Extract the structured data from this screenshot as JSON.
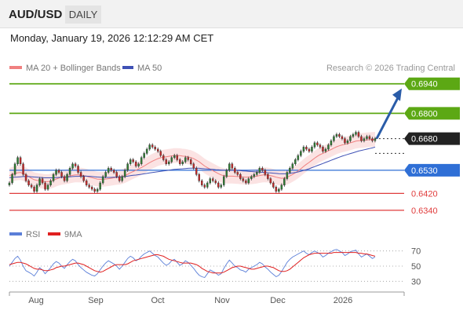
{
  "header": {
    "symbol": "AUD/USD",
    "timeframe": "DAILY"
  },
  "datetime": "Monday, January 19, 2026 12:12:29 AM CET",
  "legend": {
    "ma20": "MA 20 + Bollinger Bands",
    "ma50": "MA 50",
    "credit": "Research © 2026 Trading Central"
  },
  "rsi_legend": {
    "rsi": "RSI",
    "ma": "9MA"
  },
  "colors": {
    "candle_up": "#2e7d32",
    "candle_down": "#c62828",
    "bollinger_fill": "#fadada",
    "ma20": "#f08080",
    "ma50": "#3f51b5",
    "target": "#5ca814",
    "pivot": "#2f6fd6",
    "support": "#e03c3c",
    "arrow": "#2a5ca8",
    "rsi": "#5b7fd8",
    "rsi_ma": "#e02020"
  },
  "chart_data": {
    "type": "candlestick",
    "x_labels": [
      "Aug",
      "Sep",
      "Oct",
      "Nov",
      "Dec",
      "2026"
    ],
    "y_range": [
      0.628,
      0.698
    ],
    "levels": [
      {
        "value": 0.694,
        "label": "0.6940",
        "kind": "resistance"
      },
      {
        "value": 0.68,
        "label": "0.6800",
        "kind": "resistance"
      },
      {
        "value": 0.668,
        "label": "0.6680",
        "kind": "current"
      },
      {
        "value": 0.653,
        "label": "0.6530",
        "kind": "pivot"
      },
      {
        "value": 0.642,
        "label": "0.6420",
        "kind": "support"
      },
      {
        "value": 0.634,
        "label": "0.6340",
        "kind": "support"
      }
    ],
    "closes": [
      0.647,
      0.651,
      0.656,
      0.659,
      0.656,
      0.651,
      0.648,
      0.646,
      0.645,
      0.643,
      0.646,
      0.649,
      0.647,
      0.644,
      0.646,
      0.648,
      0.651,
      0.653,
      0.652,
      0.65,
      0.648,
      0.651,
      0.654,
      0.656,
      0.655,
      0.652,
      0.65,
      0.648,
      0.646,
      0.645,
      0.644,
      0.643,
      0.644,
      0.647,
      0.65,
      0.652,
      0.654,
      0.653,
      0.652,
      0.65,
      0.648,
      0.65,
      0.653,
      0.656,
      0.658,
      0.657,
      0.655,
      0.656,
      0.659,
      0.661,
      0.663,
      0.665,
      0.664,
      0.663,
      0.662,
      0.66,
      0.658,
      0.656,
      0.657,
      0.659,
      0.66,
      0.658,
      0.656,
      0.657,
      0.659,
      0.658,
      0.656,
      0.654,
      0.651,
      0.648,
      0.646,
      0.645,
      0.647,
      0.649,
      0.648,
      0.647,
      0.645,
      0.646,
      0.65,
      0.653,
      0.656,
      0.654,
      0.652,
      0.651,
      0.649,
      0.648,
      0.647,
      0.649,
      0.65,
      0.651,
      0.652,
      0.654,
      0.653,
      0.651,
      0.649,
      0.647,
      0.645,
      0.643,
      0.644,
      0.646,
      0.649,
      0.652,
      0.654,
      0.656,
      0.658,
      0.66,
      0.662,
      0.664,
      0.663,
      0.662,
      0.664,
      0.666,
      0.665,
      0.664,
      0.662,
      0.663,
      0.665,
      0.667,
      0.669,
      0.67,
      0.669,
      0.668,
      0.666,
      0.667,
      0.669,
      0.67,
      0.671,
      0.669,
      0.667,
      0.668,
      0.669,
      0.668,
      0.667,
      0.668
    ],
    "ma20": [
      0.6505,
      0.651,
      0.6515,
      0.6518,
      0.6519,
      0.6515,
      0.6508,
      0.65,
      0.6492,
      0.6485,
      0.6482,
      0.648,
      0.6478,
      0.6476,
      0.6476,
      0.6478,
      0.6482,
      0.6488,
      0.6493,
      0.6496,
      0.6498,
      0.65,
      0.6503,
      0.6506,
      0.6508,
      0.6508,
      0.6507,
      0.6505,
      0.6502,
      0.6498,
      0.6495,
      0.6491,
      0.6488,
      0.6487,
      0.6487,
      0.6488,
      0.649,
      0.6492,
      0.6494,
      0.6496,
      0.6497,
      0.65,
      0.6505,
      0.6511,
      0.6518,
      0.6524,
      0.653,
      0.6536,
      0.6543,
      0.655,
      0.6558,
      0.6566,
      0.6573,
      0.6579,
      0.6585,
      0.6589,
      0.6592,
      0.6594,
      0.6596,
      0.6598,
      0.66,
      0.66,
      0.6599,
      0.6597,
      0.6596,
      0.6593,
      0.659,
      0.6585,
      0.6578,
      0.657,
      0.656,
      0.655,
      0.6542,
      0.6535,
      0.6528,
      0.6521,
      0.6514,
      0.6508,
      0.6504,
      0.6502,
      0.6502,
      0.6502,
      0.6501,
      0.65,
      0.6499,
      0.6498,
      0.6497,
      0.6498,
      0.6499,
      0.65,
      0.6502,
      0.6505,
      0.6507,
      0.6508,
      0.6507,
      0.6505,
      0.6501,
      0.6497,
      0.6494,
      0.6492,
      0.6493,
      0.6497,
      0.6503,
      0.651,
      0.6518,
      0.6527,
      0.6537,
      0.6548,
      0.6558,
      0.6567,
      0.6577,
      0.6587,
      0.6596,
      0.6604,
      0.661,
      0.6616,
      0.6622,
      0.6628,
      0.6635,
      0.6641,
      0.6646,
      0.665,
      0.6653,
      0.6656,
      0.666,
      0.6664,
      0.6668,
      0.667,
      0.6671,
      0.6672,
      0.6674,
      0.6675,
      0.6676,
      0.6677
    ],
    "ma50": [
      0.6495,
      0.6496,
      0.6497,
      0.6498,
      0.6499,
      0.65,
      0.65,
      0.65,
      0.6499,
      0.6498,
      0.6497,
      0.6496,
      0.6495,
      0.6494,
      0.6494,
      0.6494,
      0.6494,
      0.6495,
      0.6496,
      0.6497,
      0.6497,
      0.6498,
      0.6499,
      0.65,
      0.6501,
      0.6501,
      0.6502,
      0.6502,
      0.6502,
      0.6501,
      0.65,
      0.6499,
      0.6498,
      0.6497,
      0.6496,
      0.6496,
      0.6496,
      0.6496,
      0.6497,
      0.6497,
      0.6498,
      0.6499,
      0.65,
      0.6502,
      0.6504,
      0.6506,
      0.6507,
      0.6509,
      0.6511,
      0.6513,
      0.6515,
      0.6517,
      0.6519,
      0.6521,
      0.6523,
      0.6525,
      0.6527,
      0.6528,
      0.653,
      0.6532,
      0.6534,
      0.6535,
      0.6536,
      0.6537,
      0.6538,
      0.6539,
      0.654,
      0.654,
      0.654,
      0.6539,
      0.6538,
      0.6537,
      0.6536,
      0.6535,
      0.6534,
      0.6533,
      0.6532,
      0.6531,
      0.653,
      0.653,
      0.653,
      0.653,
      0.653,
      0.6529,
      0.6528,
      0.6527,
      0.6526,
      0.6525,
      0.6524,
      0.6523,
      0.6522,
      0.6521,
      0.652,
      0.6519,
      0.6518,
      0.6517,
      0.6516,
      0.6515,
      0.6514,
      0.6513,
      0.6513,
      0.6514,
      0.6515,
      0.6517,
      0.6519,
      0.6522,
      0.6525,
      0.6529,
      0.6533,
      0.6537,
      0.6542,
      0.6547,
      0.6552,
      0.6557,
      0.6562,
      0.6567,
      0.6572,
      0.6577,
      0.6582,
      0.6587,
      0.6592,
      0.6597,
      0.6601,
      0.6605,
      0.6609,
      0.6613,
      0.6617,
      0.6621,
      0.6624,
      0.6627,
      0.663,
      0.6633,
      0.6636,
      0.664
    ],
    "rsi": [
      50,
      55,
      60,
      63,
      58,
      50,
      44,
      42,
      40,
      37,
      42,
      48,
      45,
      40,
      44,
      48,
      53,
      56,
      54,
      50,
      47,
      52,
      56,
      59,
      57,
      52,
      48,
      45,
      42,
      40,
      38,
      37,
      40,
      45,
      50,
      54,
      57,
      55,
      53,
      50,
      46,
      50,
      55,
      60,
      63,
      61,
      57,
      59,
      63,
      66,
      68,
      70,
      67,
      64,
      62,
      58,
      54,
      51,
      53,
      57,
      59,
      55,
      51,
      53,
      57,
      55,
      51,
      47,
      42,
      38,
      36,
      35,
      40,
      45,
      43,
      41,
      38,
      40,
      47,
      53,
      58,
      54,
      50,
      48,
      45,
      44,
      42,
      46,
      48,
      50,
      52,
      55,
      53,
      49,
      46,
      42,
      39,
      36,
      38,
      43,
      49,
      55,
      59,
      62,
      64,
      66,
      68,
      70,
      67,
      65,
      68,
      70,
      68,
      66,
      62,
      64,
      67,
      69,
      71,
      72,
      70,
      68,
      64,
      66,
      69,
      70,
      71,
      66,
      62,
      64,
      66,
      63,
      60,
      62
    ],
    "rsi_ma": [
      52,
      53,
      54,
      55,
      55,
      54,
      53,
      51,
      49,
      47,
      46,
      46,
      45,
      44,
      44,
      45,
      46,
      48,
      49,
      50,
      50,
      51,
      52,
      53,
      54,
      54,
      53,
      52,
      50,
      48,
      46,
      44,
      43,
      42,
      43,
      45,
      47,
      49,
      51,
      52,
      52,
      52,
      52,
      53,
      55,
      57,
      58,
      59,
      60,
      61,
      62,
      63,
      64,
      65,
      65,
      64,
      63,
      61,
      59,
      58,
      57,
      56,
      55,
      54,
      54,
      54,
      54,
      53,
      52,
      50,
      47,
      45,
      43,
      42,
      41,
      41,
      41,
      41,
      42,
      44,
      46,
      48,
      49,
      50,
      50,
      49,
      48,
      47,
      46,
      46,
      47,
      48,
      49,
      50,
      50,
      49,
      48,
      46,
      44,
      43,
      43,
      44,
      46,
      49,
      52,
      55,
      58,
      61,
      63,
      65,
      66,
      67,
      67,
      67,
      67,
      67,
      67,
      67,
      68,
      68,
      68,
      68,
      68,
      68,
      68,
      68,
      68,
      67,
      67,
      66,
      66,
      65,
      64,
      63
    ],
    "rsi_levels": [
      {
        "value": 70,
        "label": "70"
      },
      {
        "value": 50,
        "label": "50"
      },
      {
        "value": 30,
        "label": "30"
      }
    ],
    "rsi_range": [
      20,
      80
    ]
  }
}
